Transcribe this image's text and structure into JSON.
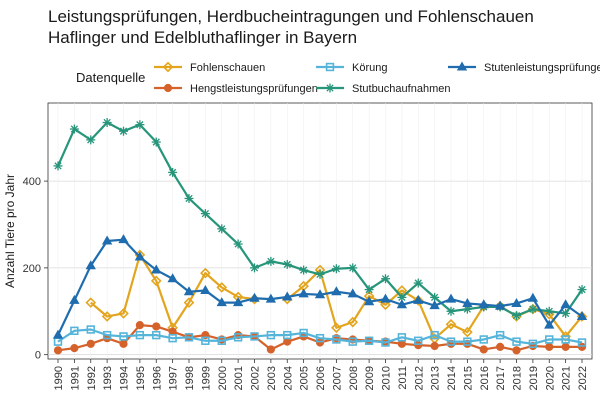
{
  "chart_data": {
    "type": "line",
    "title": [
      "Leistungsprüfungen, Herdbucheintragungen und Fohlenschauen",
      " Haflinger und Edelbluthaflinger in Bayern"
    ],
    "legend_title": "Datenquelle",
    "xlabel": "",
    "ylabel": "Anzahl Tiere pro Jahr",
    "ylim": [
      -10,
      580
    ],
    "yticks": [
      0,
      200,
      400
    ],
    "x": [
      "1990",
      "1991",
      "1992",
      "1993",
      "1994",
      "1995",
      "1996",
      "1997",
      "1998",
      "1999",
      "2000",
      "2001",
      "2002",
      "2003",
      "2004",
      "2005",
      "2006",
      "2007",
      "2008",
      "2009",
      "2010",
      "2011",
      "2012",
      "2013",
      "2014",
      "2015",
      "2016",
      "2017",
      "2018",
      "2019",
      "2020",
      "2021",
      "2022"
    ],
    "grid": true,
    "series": [
      {
        "name": "Fohlenschauen",
        "color": "#E3A41E",
        "marker": "diamond",
        "values": [
          null,
          null,
          120,
          88,
          95,
          230,
          170,
          62,
          120,
          188,
          155,
          133,
          128,
          null,
          128,
          158,
          195,
          62,
          75,
          135,
          115,
          148,
          125,
          37,
          70,
          52,
          112,
          112,
          88,
          105,
          93,
          42,
          88
        ]
      },
      {
        "name": "Hengstleistungsprüfungen",
        "color": "#D5622A",
        "marker": "circle",
        "values": [
          10,
          15,
          25,
          38,
          25,
          68,
          65,
          53,
          40,
          45,
          35,
          45,
          42,
          12,
          30,
          42,
          28,
          38,
          35,
          32,
          30,
          25,
          22,
          20,
          25,
          25,
          12,
          18,
          10,
          20,
          18,
          18,
          18
        ]
      },
      {
        "name": "Körung",
        "color": "#55B4DA",
        "marker": "square",
        "values": [
          30,
          55,
          58,
          45,
          42,
          45,
          45,
          38,
          40,
          32,
          32,
          40,
          42,
          45,
          45,
          50,
          38,
          35,
          30,
          32,
          28,
          40,
          32,
          45,
          30,
          30,
          35,
          45,
          30,
          25,
          35,
          35,
          28
        ]
      },
      {
        "name": "Stutbuchaufnahmen",
        "color": "#27957A",
        "marker": "asterisk",
        "values": [
          435,
          520,
          495,
          535,
          515,
          530,
          490,
          420,
          360,
          325,
          290,
          255,
          200,
          215,
          208,
          195,
          185,
          198,
          200,
          150,
          175,
          132,
          165,
          132,
          100,
          105,
          110,
          110,
          90,
          105,
          100,
          95,
          150
        ]
      },
      {
        "name": "Stutenleistungsprüfungen",
        "color": "#1F6CAE",
        "marker": "triangle",
        "values": [
          45,
          125,
          205,
          262,
          265,
          225,
          195,
          175,
          145,
          148,
          120,
          120,
          130,
          128,
          133,
          140,
          138,
          145,
          140,
          122,
          128,
          115,
          125,
          113,
          128,
          118,
          115,
          112,
          118,
          130,
          68,
          115,
          88
        ]
      }
    ]
  }
}
